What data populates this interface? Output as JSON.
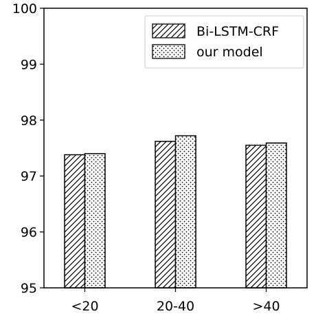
{
  "chart_data": {
    "type": "bar",
    "title": "",
    "xlabel": "",
    "ylabel": "",
    "categories": [
      "<20",
      "20-40",
      ">40"
    ],
    "series": [
      {
        "name": "Bi-LSTM-CRF",
        "values": [
          97.38,
          97.62,
          97.55
        ]
      },
      {
        "name": "our model",
        "values": [
          97.4,
          97.72,
          97.59
        ]
      }
    ],
    "ylim": [
      95,
      100
    ],
    "yticks": [
      "95",
      "96",
      "97",
      "98",
      "99",
      "100"
    ],
    "grid": false,
    "legend_position": "top-right"
  }
}
